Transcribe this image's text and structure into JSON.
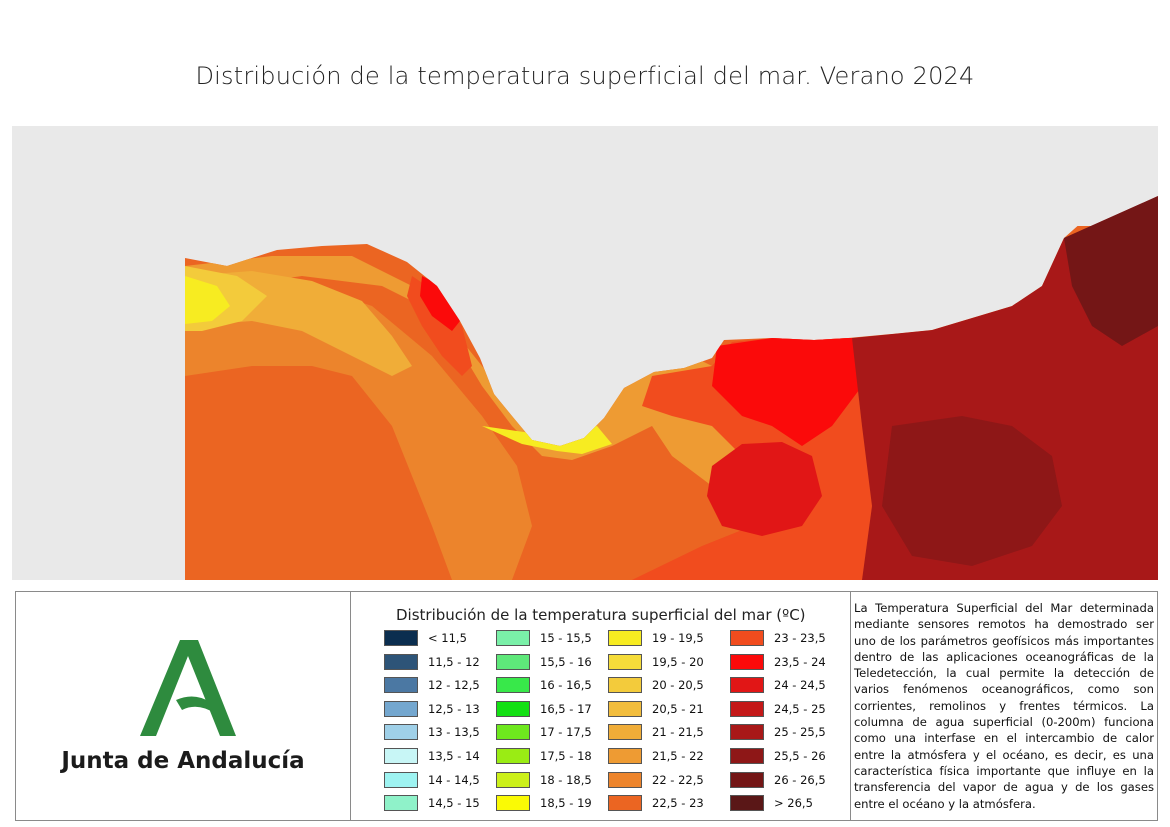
{
  "title": "Distribución de la temperatura superficial del mar. Verano 2024",
  "brand": {
    "name": "Junta de Andalucía",
    "logo_icon": "andalucia-a-logo-icon",
    "color": "#2e8b3e"
  },
  "legend": {
    "title": "Distribución de la temperatura superficial del mar (ºC)",
    "classes": [
      {
        "label": "< 11,5",
        "color": "#0b2e4f"
      },
      {
        "label": "11,5 - 12",
        "color": "#2d5478"
      },
      {
        "label": "12 - 12,5",
        "color": "#4b78a3"
      },
      {
        "label": "12,5 - 13",
        "color": "#74a7cf"
      },
      {
        "label": "13 - 13,5",
        "color": "#9fd0e8"
      },
      {
        "label": "13,5 - 14",
        "color": "#c8f6f6"
      },
      {
        "label": "14 - 14,5",
        "color": "#9ef3f1"
      },
      {
        "label": "14,5 - 15",
        "color": "#8ff2c9"
      },
      {
        "label": "15 - 15,5",
        "color": "#7af0a8"
      },
      {
        "label": "15,5 - 16",
        "color": "#5ee87a"
      },
      {
        "label": "16 - 16,5",
        "color": "#38e84a"
      },
      {
        "label": "16,5 - 17",
        "color": "#13e013"
      },
      {
        "label": "17 - 17,5",
        "color": "#6ee81e"
      },
      {
        "label": "17,5 - 18",
        "color": "#9aec14"
      },
      {
        "label": "18 - 18,5",
        "color": "#ccf01a"
      },
      {
        "label": "18,5 - 19",
        "color": "#fafa05"
      },
      {
        "label": "19 - 19,5",
        "color": "#f7ec21"
      },
      {
        "label": "19,5 - 20",
        "color": "#f5dc3a"
      },
      {
        "label": "20 - 20,5",
        "color": "#f3cb3b"
      },
      {
        "label": "20,5 - 21",
        "color": "#f2bd3d"
      },
      {
        "label": "21 - 21,5",
        "color": "#f0ad38"
      },
      {
        "label": "21,5 - 22",
        "color": "#ee9b33"
      },
      {
        "label": "22 - 22,5",
        "color": "#ec842c"
      },
      {
        "label": "22,5 - 23",
        "color": "#eb6522"
      },
      {
        "label": "23 - 23,5",
        "color": "#f14c1e"
      },
      {
        "label": "23,5 - 24",
        "color": "#fb0a0a"
      },
      {
        "label": "24 - 24,5",
        "color": "#e11616"
      },
      {
        "label": "24,5 - 25",
        "color": "#c41818"
      },
      {
        "label": "25 - 25,5",
        "color": "#a81818"
      },
      {
        "label": "25,5 - 26",
        "color": "#8e1717"
      },
      {
        "label": "26 - 26,5",
        "color": "#741616"
      },
      {
        "label": "> 26,5",
        "color": "#5a1717"
      }
    ]
  },
  "description": "La Temperatura Superficial del Mar determinada mediante sensores remotos ha demostrado ser uno de los parámetros geofísicos más importantes dentro de las aplicaciones oceanográficas de la Teledetección, la cual permite la detección de varios fenómenos oceanográficos, como son corrientes, remolinos y frentes térmicos. La columna de agua superficial (0-200m) funciona como una interfase en el intercambio de calor entre la atmósfera y el océano, es decir, es una característica física importante que influye en la transferencia del vapor de agua y de los gases entre el océano y la atmósfera.",
  "map": {
    "land_color": "#e9e9e9"
  }
}
